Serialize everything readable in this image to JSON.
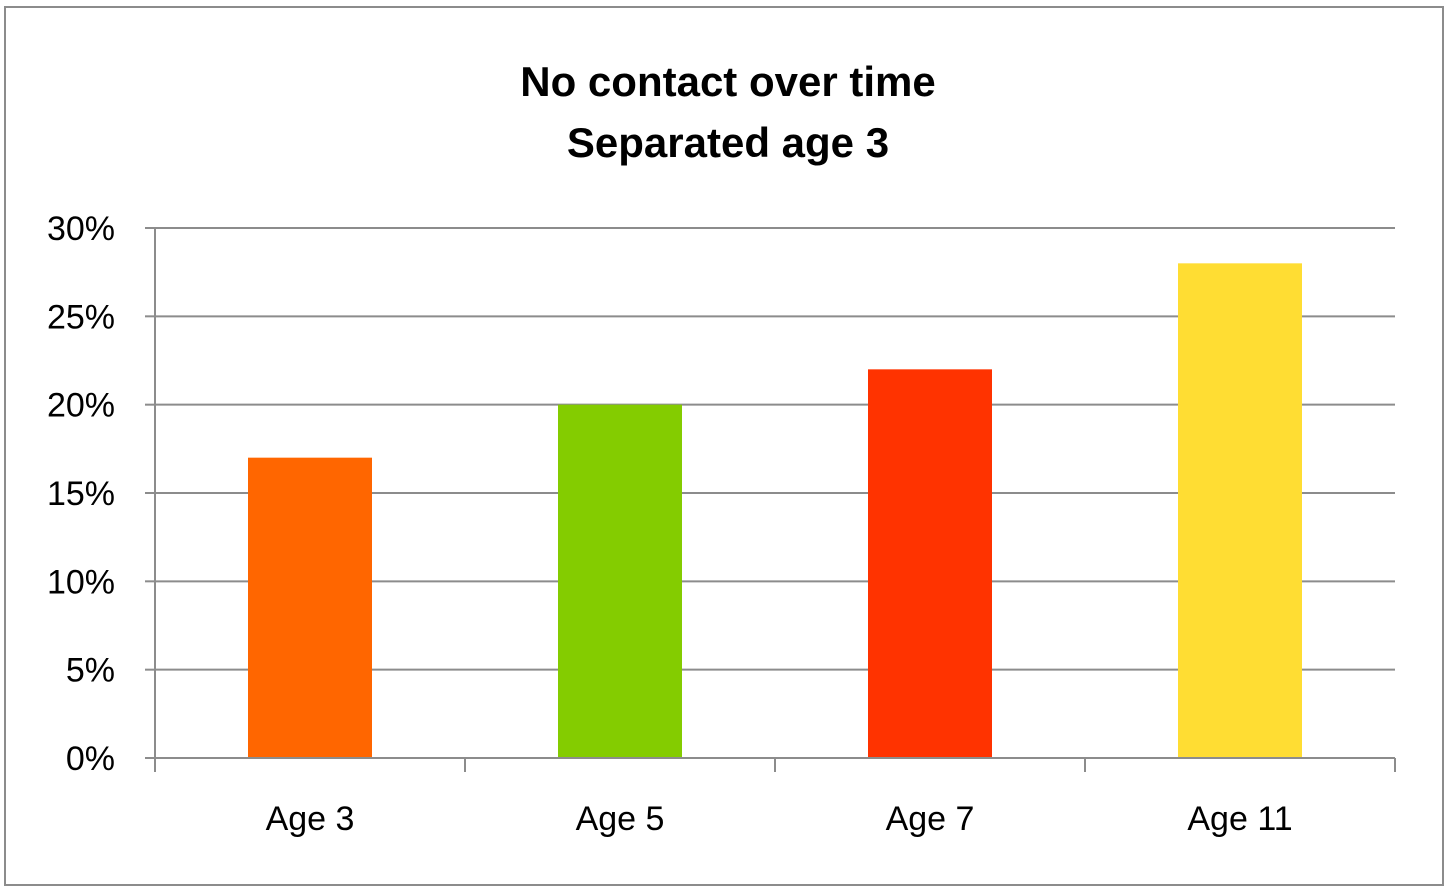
{
  "chart_data": {
    "type": "bar",
    "title": [
      "No contact over time",
      "Separated age 3"
    ],
    "categories": [
      "Age 3",
      "Age 5",
      "Age 7",
      "Age 11"
    ],
    "values": [
      17,
      20,
      22,
      28
    ],
    "value_unit": "%",
    "colors": [
      "#ff6600",
      "#84cc00",
      "#ff3300",
      "#ffdd33"
    ],
    "ylim": [
      0,
      30
    ],
    "y_ticks": [
      "0%",
      "5%",
      "10%",
      "15%",
      "20%",
      "25%",
      "30%"
    ],
    "grid": true,
    "legend": "none",
    "xlabel": "",
    "ylabel": ""
  }
}
